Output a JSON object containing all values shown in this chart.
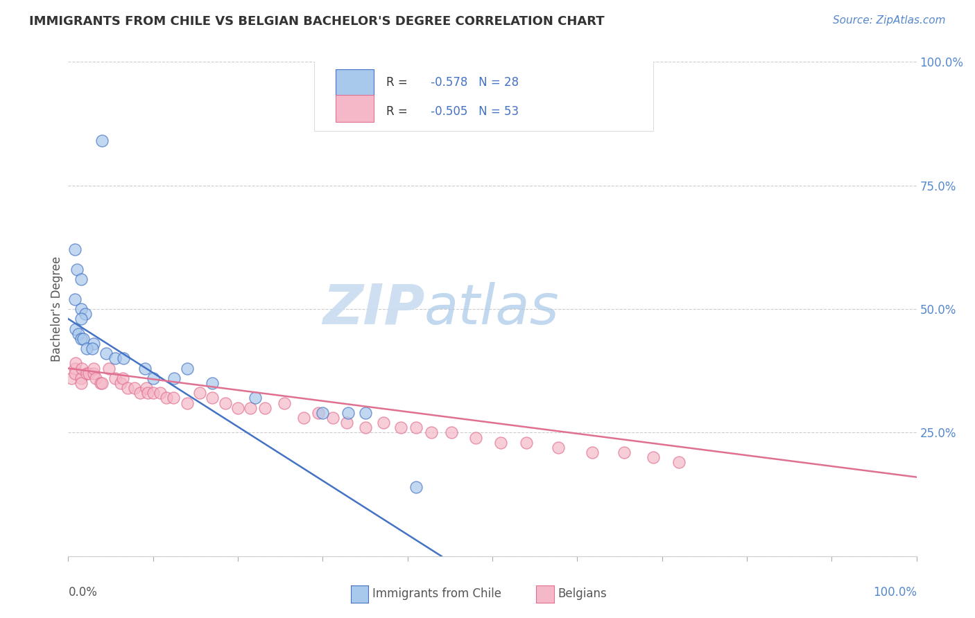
{
  "title": "IMMIGRANTS FROM CHILE VS BELGIAN BACHELOR'S DEGREE CORRELATION CHART",
  "source": "Source: ZipAtlas.com",
  "ylabel": "Bachelor's Degree",
  "xlim": [
    0.0,
    1.0
  ],
  "ylim": [
    0.0,
    1.0
  ],
  "xtick_vals": [
    0.0,
    0.1,
    0.2,
    0.3,
    0.4,
    0.5,
    0.6,
    0.7,
    0.8,
    0.9,
    1.0
  ],
  "ytick_vals": [
    0.0,
    0.25,
    0.5,
    0.75,
    1.0
  ],
  "ytick_labels_right": [
    "",
    "25.0%",
    "50.0%",
    "75.0%",
    "100.0%"
  ],
  "blue_scatter_x": [
    0.04,
    0.008,
    0.01,
    0.015,
    0.008,
    0.015,
    0.02,
    0.015,
    0.009,
    0.012,
    0.015,
    0.018,
    0.03,
    0.022,
    0.028,
    0.045,
    0.055,
    0.065,
    0.09,
    0.1,
    0.125,
    0.14,
    0.17,
    0.22,
    0.3,
    0.33,
    0.35,
    0.41
  ],
  "blue_scatter_y": [
    0.84,
    0.62,
    0.58,
    0.56,
    0.52,
    0.5,
    0.49,
    0.48,
    0.46,
    0.45,
    0.44,
    0.44,
    0.43,
    0.42,
    0.42,
    0.41,
    0.4,
    0.4,
    0.38,
    0.36,
    0.36,
    0.38,
    0.35,
    0.32,
    0.29,
    0.29,
    0.29,
    0.14
  ],
  "pink_scatter_x": [
    0.004,
    0.008,
    0.008,
    0.009,
    0.015,
    0.015,
    0.016,
    0.022,
    0.024,
    0.03,
    0.03,
    0.032,
    0.038,
    0.04,
    0.048,
    0.055,
    0.062,
    0.064,
    0.07,
    0.078,
    0.085,
    0.092,
    0.094,
    0.1,
    0.108,
    0.116,
    0.124,
    0.14,
    0.155,
    0.17,
    0.185,
    0.2,
    0.215,
    0.232,
    0.255,
    0.278,
    0.295,
    0.312,
    0.328,
    0.35,
    0.372,
    0.392,
    0.41,
    0.428,
    0.452,
    0.48,
    0.51,
    0.54,
    0.578,
    0.618,
    0.655,
    0.69,
    0.72
  ],
  "pink_scatter_y": [
    0.36,
    0.38,
    0.37,
    0.39,
    0.36,
    0.35,
    0.38,
    0.37,
    0.37,
    0.37,
    0.38,
    0.36,
    0.35,
    0.35,
    0.38,
    0.36,
    0.35,
    0.36,
    0.34,
    0.34,
    0.33,
    0.34,
    0.33,
    0.33,
    0.33,
    0.32,
    0.32,
    0.31,
    0.33,
    0.32,
    0.31,
    0.3,
    0.3,
    0.3,
    0.31,
    0.28,
    0.29,
    0.28,
    0.27,
    0.26,
    0.27,
    0.26,
    0.26,
    0.25,
    0.25,
    0.24,
    0.23,
    0.23,
    0.22,
    0.21,
    0.21,
    0.2,
    0.19
  ],
  "blue_R": -0.578,
  "blue_N": 28,
  "pink_R": -0.505,
  "pink_N": 53,
  "blue_line_x": [
    0.0,
    0.44
  ],
  "blue_line_y": [
    0.48,
    0.0
  ],
  "pink_line_x": [
    0.0,
    1.0
  ],
  "pink_line_y": [
    0.38,
    0.16
  ],
  "blue_color": "#A8C8EC",
  "pink_color": "#F5B8C8",
  "blue_line_color": "#4472C4",
  "pink_line_color": "#E07090",
  "background_color": "#FFFFFF",
  "grid_color": "#CCCCCC",
  "title_color": "#333333",
  "legend_text_color_blue": "#4472C4",
  "legend_text_color_black": "#333333"
}
